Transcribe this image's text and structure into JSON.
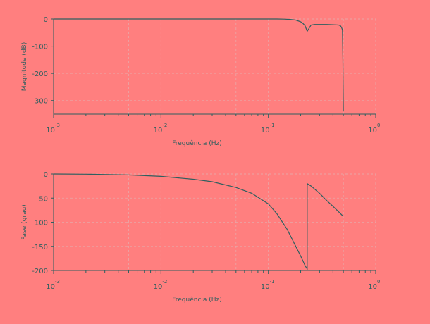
{
  "colors": {
    "background": "#ff7f7f",
    "axis": "#2f5f5f",
    "curve": "#2f5f5f",
    "grid": "#e8a8a8"
  },
  "chart_data": [
    {
      "type": "line",
      "title": "",
      "xlabel": "Frequência (Hz)",
      "ylabel": "Magnitude (dB)",
      "x_scale": "log",
      "xlim": [
        0.001,
        1
      ],
      "ylim": [
        -350,
        0
      ],
      "x_ticks": [
        {
          "base": "10",
          "exp": "-3"
        },
        {
          "base": "10",
          "exp": "-2"
        },
        {
          "base": "10",
          "exp": "-1"
        },
        {
          "base": "10",
          "exp": "0"
        }
      ],
      "y_ticks": [
        "0",
        "-100",
        "-200",
        "-300"
      ],
      "y_tick_values": [
        0,
        -100,
        -200,
        -300
      ],
      "grid": true,
      "series": [
        {
          "x": [
            0.001,
            0.005,
            0.01,
            0.02,
            0.05,
            0.08,
            0.1,
            0.12,
            0.14,
            0.16,
            0.18,
            0.2,
            0.21,
            0.22,
            0.23,
            0.25,
            0.27,
            0.3,
            0.35,
            0.4,
            0.45,
            0.47,
            0.48,
            0.49,
            0.495,
            0.5
          ],
          "y": [
            0,
            0,
            0,
            0,
            0,
            0,
            0,
            0,
            -0.5,
            -1.5,
            -4,
            -10,
            -16,
            -25,
            -45,
            -22,
            -20,
            -20,
            -20,
            -21,
            -22,
            -25,
            -30,
            -40,
            -150,
            -340
          ]
        }
      ]
    },
    {
      "type": "line",
      "title": "",
      "xlabel": "Frequência (Hz)",
      "ylabel": "Fase (grau)",
      "x_scale": "log",
      "xlim": [
        0.001,
        1
      ],
      "ylim": [
        -200,
        0
      ],
      "x_ticks": [
        {
          "base": "10",
          "exp": "-3"
        },
        {
          "base": "10",
          "exp": "-2"
        },
        {
          "base": "10",
          "exp": "-1"
        },
        {
          "base": "10",
          "exp": "0"
        }
      ],
      "y_ticks": [
        "0",
        "-50",
        "-100",
        "-150",
        "-200"
      ],
      "y_tick_values": [
        0,
        -50,
        -100,
        -150,
        -200
      ],
      "grid": true,
      "series": [
        {
          "x": [
            0.001,
            0.002,
            0.005,
            0.01,
            0.02,
            0.03,
            0.05,
            0.07,
            0.1,
            0.12,
            0.15,
            0.18,
            0.2,
            0.22,
            0.23,
            0.2301,
            0.25,
            0.3,
            0.35,
            0.4,
            0.45,
            0.5
          ],
          "y": [
            0,
            -0.5,
            -2,
            -5,
            -11,
            -16,
            -28,
            -40,
            -62,
            -82,
            -115,
            -150,
            -170,
            -190,
            -197,
            -20,
            -25,
            -40,
            -55,
            -67,
            -78,
            -88
          ]
        }
      ]
    }
  ]
}
